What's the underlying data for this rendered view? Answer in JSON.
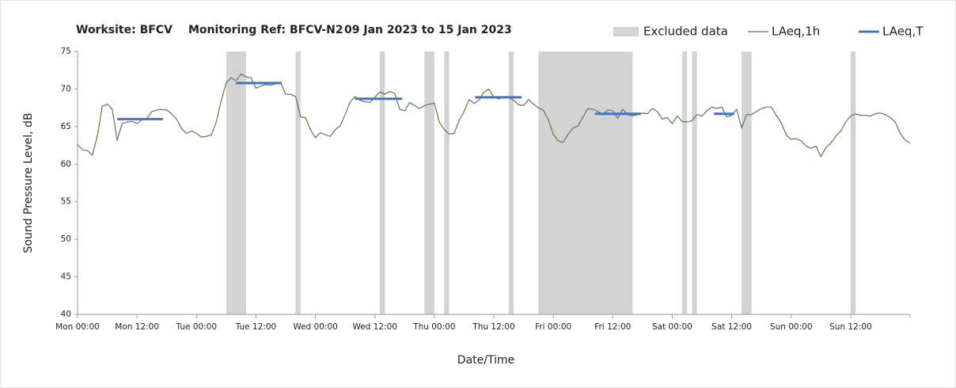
{
  "chart_data": {
    "type": "line",
    "title": {
      "worksite": "Worksite: BFCV",
      "ref": "Monitoring Ref: BFCV-N2",
      "period": "09 Jan 2023 to 15 Jan 2023"
    },
    "xlabel": "Date/Time",
    "ylabel": "Sound Pressure Level, dB",
    "xlim": [
      0,
      168
    ],
    "ylim": [
      40,
      75
    ],
    "xticks": [
      {
        "value": 0,
        "label": "Mon 00:00"
      },
      {
        "value": 12,
        "label": "Mon 12:00"
      },
      {
        "value": 24,
        "label": "Tue 00:00"
      },
      {
        "value": 36,
        "label": "Tue 12:00"
      },
      {
        "value": 48,
        "label": "Wed 00:00"
      },
      {
        "value": 60,
        "label": "Wed 12:00"
      },
      {
        "value": 72,
        "label": "Thu 00:00"
      },
      {
        "value": 84,
        "label": "Thu 12:00"
      },
      {
        "value": 96,
        "label": "Fri 00:00"
      },
      {
        "value": 108,
        "label": "Fri 12:00"
      },
      {
        "value": 120,
        "label": "Sat 00:00"
      },
      {
        "value": 132,
        "label": "Sat 12:00"
      },
      {
        "value": 144,
        "label": "Sun 00:00"
      },
      {
        "value": 156,
        "label": "Sun 12:00"
      }
    ],
    "yticks": [
      40,
      45,
      50,
      55,
      60,
      65,
      70,
      75
    ],
    "grid": false,
    "legend": "top-right",
    "excluded": {
      "name": "Excluded data",
      "color": "#d3d3d3",
      "ranges": [
        [
          30,
          34
        ],
        [
          44,
          45
        ],
        [
          61,
          62
        ],
        [
          70,
          72
        ],
        [
          74,
          75
        ],
        [
          87,
          88
        ],
        [
          93,
          112
        ],
        [
          122,
          123
        ],
        [
          124,
          125
        ],
        [
          134,
          136
        ],
        [
          156,
          157
        ]
      ]
    },
    "series": [
      {
        "name": "LAeq,1h",
        "color": "#5b7a4c",
        "width": 1.2,
        "x": [
          0,
          1,
          2,
          3,
          4,
          5,
          6,
          7,
          8,
          9,
          10,
          11,
          12,
          13,
          14,
          15,
          16,
          17,
          18,
          19,
          20,
          21,
          22,
          23,
          24,
          25,
          26,
          27,
          28,
          29,
          30,
          31,
          32,
          33,
          34,
          35,
          36,
          37,
          38,
          39,
          40,
          41,
          42,
          43,
          44,
          45,
          46,
          47,
          48,
          49,
          50,
          51,
          52,
          53,
          54,
          55,
          56,
          57,
          58,
          59,
          60,
          61,
          62,
          63,
          64,
          65,
          66,
          67,
          68,
          69,
          70,
          71,
          72,
          73,
          74,
          75,
          76,
          77,
          78,
          79,
          80,
          81,
          82,
          83,
          84,
          85,
          86,
          87,
          88,
          89,
          90,
          91,
          92,
          93,
          94,
          95,
          96,
          97,
          98,
          99,
          100,
          101,
          102,
          103,
          104,
          105,
          106,
          107,
          108,
          109,
          110,
          111,
          112,
          113,
          114,
          115,
          116,
          117,
          118,
          119,
          120,
          121,
          122,
          123,
          124,
          125,
          126,
          127,
          128,
          129,
          130,
          131,
          132,
          133,
          134,
          135,
          136,
          137,
          138,
          139,
          140,
          141,
          142,
          143,
          144,
          145,
          146,
          147,
          148,
          149,
          150,
          151,
          152,
          153,
          154,
          155,
          156,
          157,
          158,
          159,
          160,
          161,
          162,
          163,
          164,
          165,
          166,
          167,
          168
        ],
        "values": [
          62.6,
          61.9,
          61.8,
          61.2,
          63.8,
          67.7,
          68.0,
          67.3,
          63.2,
          65.4,
          65.6,
          65.7,
          65.4,
          65.9,
          66.1,
          67.0,
          67.2,
          67.3,
          67.2,
          66.7,
          66.0,
          64.7,
          64.1,
          64.4,
          64.1,
          63.6,
          63.7,
          63.9,
          65.6,
          68.5,
          70.8,
          71.5,
          71.1,
          72.0,
          71.6,
          71.5,
          70.1,
          70.4,
          70.6,
          70.5,
          70.7,
          70.8,
          69.3,
          69.3,
          69.0,
          66.3,
          66.2,
          64.6,
          63.5,
          64.2,
          63.9,
          63.7,
          64.6,
          65.1,
          66.6,
          68.3,
          69.0,
          68.5,
          68.3,
          68.2,
          68.9,
          69.6,
          69.3,
          69.7,
          69.4,
          67.3,
          67.1,
          68.2,
          67.8,
          67.4,
          67.8,
          68.0,
          68.1,
          65.6,
          64.6,
          64.0,
          64.1,
          65.8,
          67.0,
          68.6,
          68.1,
          68.5,
          69.6,
          70.0,
          68.9,
          68.7,
          68.9,
          68.9,
          68.5,
          67.9,
          67.8,
          68.6,
          68.0,
          67.5,
          67.2,
          65.9,
          64.0,
          63.1,
          62.9,
          64.0,
          64.8,
          65.1,
          66.3,
          67.4,
          67.3,
          67.0,
          66.6,
          67.2,
          67.1,
          66.1,
          67.3,
          66.6,
          66.4,
          66.6,
          66.8,
          66.7,
          67.4,
          67.0,
          66.0,
          66.2,
          65.4,
          66.4,
          65.7,
          65.6,
          65.8,
          66.6,
          66.4,
          67.1,
          67.6,
          67.4,
          67.6,
          66.3,
          66.5,
          67.3,
          64.8,
          66.6,
          66.6,
          67.0,
          67.4,
          67.6,
          67.6,
          66.5,
          65.5,
          63.9,
          63.3,
          63.4,
          63.1,
          62.4,
          62.1,
          62.4,
          61.0,
          62.2,
          62.8,
          63.7,
          64.4,
          65.6,
          66.4,
          66.7,
          66.5,
          66.5,
          66.4,
          66.7,
          66.8,
          66.6,
          66.2,
          65.6,
          64.1,
          63.2,
          62.8
        ]
      },
      {
        "name": "LAeq,T",
        "color": "#4472c4",
        "width": 3,
        "x": [
          8,
          17.2,
          24,
          32,
          41.2,
          48,
          56,
          65.5,
          72,
          80.2,
          89.6,
          96,
          104.4,
          113.7,
          120,
          128.4,
          132.5
        ],
        "values": [
          66,
          66,
          null,
          70.8,
          70.8,
          null,
          68.7,
          68.7,
          null,
          68.9,
          68.9,
          null,
          66.7,
          66.7,
          null,
          66.7,
          66.7
        ]
      }
    ]
  }
}
